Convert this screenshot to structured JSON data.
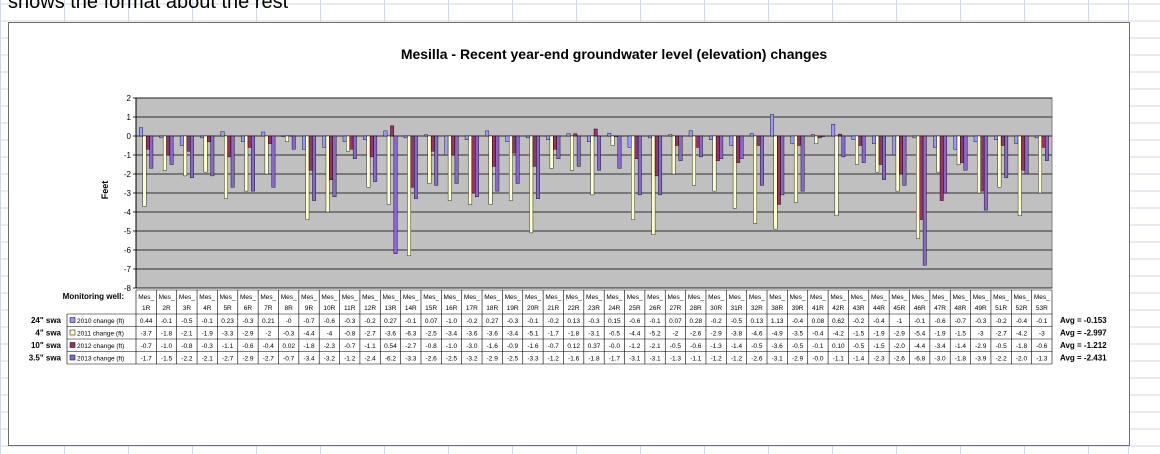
{
  "sheet": {
    "cut_off_text": "shows the format about the rest",
    "gridline_color": "#d0d7e5"
  },
  "chart_data": {
    "type": "bar",
    "title": "Mesilla - Recent year-end groundwater level (elevation) changes",
    "ylabel": "Feet",
    "ylim": [
      -8,
      2
    ],
    "yticks": [
      2,
      1,
      0,
      -1,
      -2,
      -3,
      -4,
      -5,
      -6,
      -7,
      -8
    ],
    "grid": true,
    "plot_background": "#c0c0c0",
    "table_header_label": "Monitoring well:",
    "category_prefix": "Mes_",
    "categories": [
      "1R",
      "2R",
      "3R",
      "4R",
      "5R",
      "6R",
      "7R",
      "8R",
      "9R",
      "10R",
      "11R",
      "12R",
      "13R",
      "14R",
      "15R",
      "16R",
      "17R",
      "18R",
      "19R",
      "20R",
      "21R",
      "22R",
      "23R",
      "24R",
      "25R",
      "26R",
      "27R",
      "28R",
      "30R",
      "31R",
      "32R",
      "38R",
      "39R",
      "41R",
      "42R",
      "43R",
      "44R",
      "45R",
      "46R",
      "47R",
      "48R",
      "49R",
      "51R",
      "52R",
      "53R"
    ],
    "series": [
      {
        "name": "2010 change (ft)",
        "row_label": "24\" swa",
        "color": "#9999ff",
        "avg_label": "Avg = -0.153",
        "values": [
          0.44,
          -0.1,
          -0.5,
          -0.1,
          0.23,
          -0.3,
          0.21,
          0,
          -0.7,
          -0.6,
          -0.3,
          -0.2,
          0.27,
          -0.1,
          0.07,
          -1.0,
          -0.2,
          0.27,
          -0.3,
          -0.1,
          -0.2,
          0.13,
          -0.3,
          0.15,
          -0.6,
          -0.1,
          0.07,
          0.28,
          -0.2,
          -0.5,
          0.13,
          1.13,
          -0.4,
          0.08,
          0.62,
          -0.2,
          -0.4,
          -1,
          -0.1,
          -0.6,
          -0.7,
          -0.3,
          -0.2,
          -0.4,
          -0.1
        ],
        "display": [
          "0.44",
          "-0.1",
          "-0.5",
          "-0.1",
          "0.23",
          "-0.3",
          "0.21",
          "-0",
          "-0.7",
          "-0.6",
          "-0.3",
          "-0.2",
          "0.27",
          "-0.1",
          "0.07",
          "-1.0",
          "-0.2",
          "0.27",
          "-0.3",
          "-0.1",
          "-0.2",
          "0.13",
          "-0.3",
          "0.15",
          "-0.6",
          "-0.1",
          "0.07",
          "0.28",
          "-0.2",
          "-0.5",
          "0.13",
          "1.13",
          "-0.4",
          "0.08",
          "0.62",
          "-0.2",
          "-0.4",
          "-1",
          "-0.1",
          "-0.6",
          "-0.7",
          "-0.3",
          "-0.2",
          "-0.4",
          "-0.1"
        ]
      },
      {
        "name": "2011 change (ft)",
        "row_label": "4\" swa",
        "color": "#ffffcc",
        "avg_label": "Avg = -2.997",
        "values": [
          -3.7,
          -1.8,
          -2.1,
          -1.9,
          -3.3,
          -2.9,
          -2,
          -0.3,
          -4.4,
          -4,
          -0.8,
          -2.7,
          -3.6,
          -6.3,
          -2.5,
          -3.4,
          -3.6,
          -3.6,
          -3.4,
          -5.1,
          -1.7,
          -1.8,
          -3.1,
          -0.5,
          -4.4,
          -5.2,
          -2,
          -2.6,
          -2.9,
          -3.8,
          -4.6,
          -4.9,
          -3.5,
          -0.4,
          -4.2,
          -1.5,
          -1.9,
          -2.9,
          -5.4,
          -1.9,
          -1.5,
          -3,
          -2.7,
          -4.2,
          -3
        ],
        "display": [
          "-3.7",
          "-1.8",
          "-2.1",
          "-1.9",
          "-3.3",
          "-2.9",
          "-2",
          "-0.3",
          "-4.4",
          "-4",
          "-0.8",
          "-2.7",
          "-3.6",
          "-6.3",
          "-2.5",
          "-3.4",
          "-3.6",
          "-3.6",
          "-3.4",
          "-5.1",
          "-1.7",
          "-1.8",
          "-3.1",
          "-0.5",
          "-4.4",
          "-5.2",
          "-2",
          "-2.6",
          "-2.9",
          "-3.8",
          "-4.6",
          "-4.9",
          "-3.5",
          "-0.4",
          "-4.2",
          "-1.5",
          "-1.9",
          "-2.9",
          "-5.4",
          "-1.9",
          "-1.5",
          "-3",
          "-2.7",
          "-4.2",
          "-3"
        ]
      },
      {
        "name": "2012 change (ft)",
        "row_label": "10\" swa",
        "color": "#993366",
        "avg_label": "Avg = -1.212",
        "values": [
          -0.7,
          -1.0,
          -0.8,
          -0.3,
          -1.1,
          -0.6,
          -0.4,
          0.02,
          -1.8,
          -2.3,
          -0.7,
          -1.1,
          0.54,
          -2.7,
          -0.8,
          -1.0,
          -3.0,
          -1.6,
          -0.9,
          -1.6,
          -0.7,
          0.12,
          0.37,
          -0.0,
          -1.2,
          -2.1,
          -0.5,
          -0.6,
          -1.3,
          -1.4,
          -0.5,
          -3.6,
          -0.5,
          -0.1,
          0.1,
          -0.5,
          -1.5,
          -2.0,
          -4.4,
          -3.4,
          -1.4,
          -2.9,
          -0.5,
          -1.8,
          -0.6
        ],
        "display": [
          "-0.7",
          "-1.0",
          "-0.8",
          "-0.3",
          "-1.1",
          "-0.6",
          "-0.4",
          "0.02",
          "-1.8",
          "-2.3",
          "-0.7",
          "-1.1",
          "0.54",
          "-2.7",
          "-0.8",
          "-1.0",
          "-3.0",
          "-1.6",
          "-0.9",
          "-1.6",
          "-0.7",
          "0.12",
          "0.37",
          "-0.0",
          "-1.2",
          "-2.1",
          "-0.5",
          "-0.6",
          "-1.3",
          "-1.4",
          "-0.5",
          "-3.6",
          "-0.5",
          "-0.1",
          "0.10",
          "-0.5",
          "-1.5",
          "-2.0",
          "-4.4",
          "-3.4",
          "-1.4",
          "-2.9",
          "-0.5",
          "-1.8",
          "-0.6"
        ]
      },
      {
        "name": "2013 change (ft)",
        "row_label": "3.5\" swa",
        "color": "#8866cc",
        "avg_label": "Avg = -2.431",
        "values": [
          -1.7,
          -1.5,
          -2.2,
          -2.1,
          -2.7,
          -2.9,
          -2.7,
          -0.7,
          -3.4,
          -3.2,
          -1.2,
          -2.4,
          -6.2,
          -3.3,
          -2.6,
          -2.5,
          -3.2,
          -2.9,
          -2.5,
          -3.3,
          -1.2,
          -1.6,
          -1.8,
          -1.7,
          -3.1,
          -3.1,
          -1.3,
          -1.1,
          -1.2,
          -1.2,
          -2.6,
          -3.1,
          -2.9,
          -0.0,
          -1.1,
          -1.4,
          -2.3,
          -2.6,
          -6.8,
          -3.0,
          -1.8,
          -3.9,
          -2.2,
          -2.0,
          -1.3
        ],
        "display": [
          "-1.7",
          "-1.5",
          "-2.2",
          "-2.1",
          "-2.7",
          "-2.9",
          "-2.7",
          "-0.7",
          "-3.4",
          "-3.2",
          "-1.2",
          "-2.4",
          "-6.2",
          "-3.3",
          "-2.6",
          "-2.5",
          "-3.2",
          "-2.9",
          "-2.5",
          "-3.3",
          "-1.2",
          "-1.6",
          "-1.8",
          "-1.7",
          "-3.1",
          "-3.1",
          "-1.3",
          "-1.1",
          "-1.2",
          "-1.2",
          "-2.6",
          "-3.1",
          "-2.9",
          "-0.0",
          "-1.1",
          "-1.4",
          "-2.3",
          "-2.6",
          "-6.8",
          "-3.0",
          "-1.8",
          "-3.9",
          "-2.2",
          "-2.0",
          "-1.3"
        ]
      }
    ]
  }
}
